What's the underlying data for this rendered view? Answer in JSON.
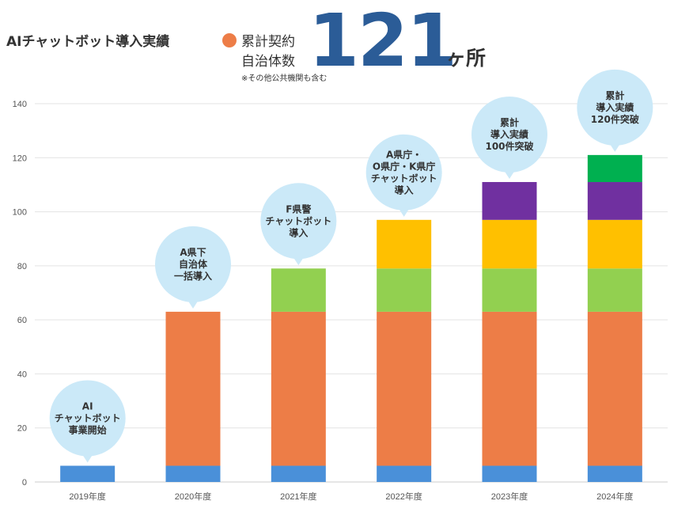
{
  "header": {
    "title": "AIチャットボット導入実績",
    "legend_line1": "累計契約",
    "legend_line2": "自治体数",
    "total": "121",
    "unit": "ヶ所",
    "note": "※その他公共機関も含む"
  },
  "chart_data": {
    "type": "bar",
    "stacked": true,
    "categories": [
      "2019年度",
      "2020年度",
      "2021年度",
      "2022年度",
      "2023年度",
      "2024年度"
    ],
    "series": [
      {
        "color": "#4a90d9",
        "values": [
          6,
          6,
          6,
          6,
          6,
          6
        ]
      },
      {
        "color": "#ed7d47",
        "values": [
          0,
          57,
          57,
          57,
          57,
          57
        ]
      },
      {
        "color": "#92d050",
        "values": [
          0,
          0,
          16,
          16,
          16,
          16
        ]
      },
      {
        "color": "#ffc000",
        "values": [
          0,
          0,
          0,
          18,
          18,
          18
        ]
      },
      {
        "color": "#7030a0",
        "values": [
          0,
          0,
          0,
          0,
          14,
          14
        ]
      },
      {
        "color": "#00b050",
        "values": [
          0,
          0,
          0,
          0,
          0,
          10
        ]
      }
    ],
    "ylim": [
      0,
      140
    ],
    "yticks": [
      0,
      20,
      40,
      60,
      80,
      100,
      120,
      140
    ],
    "grid": true,
    "annotations": [
      {
        "category": "2019年度",
        "lines": [
          "AI",
          "チャットボット",
          "事業開始"
        ]
      },
      {
        "category": "2020年度",
        "lines": [
          "A県下",
          "自治体",
          "一括導入"
        ]
      },
      {
        "category": "2021年度",
        "lines": [
          "F県警",
          "チャットボット",
          "導入"
        ]
      },
      {
        "category": "2022年度",
        "lines": [
          "A県庁・",
          "O県庁・K県庁",
          "チャットボット",
          "導入"
        ]
      },
      {
        "category": "2023年度",
        "lines": [
          "累計",
          "導入実績",
          "100件突破"
        ]
      },
      {
        "category": "2024年度",
        "lines": [
          "累計",
          "導入実績",
          "120件突破"
        ]
      }
    ]
  }
}
